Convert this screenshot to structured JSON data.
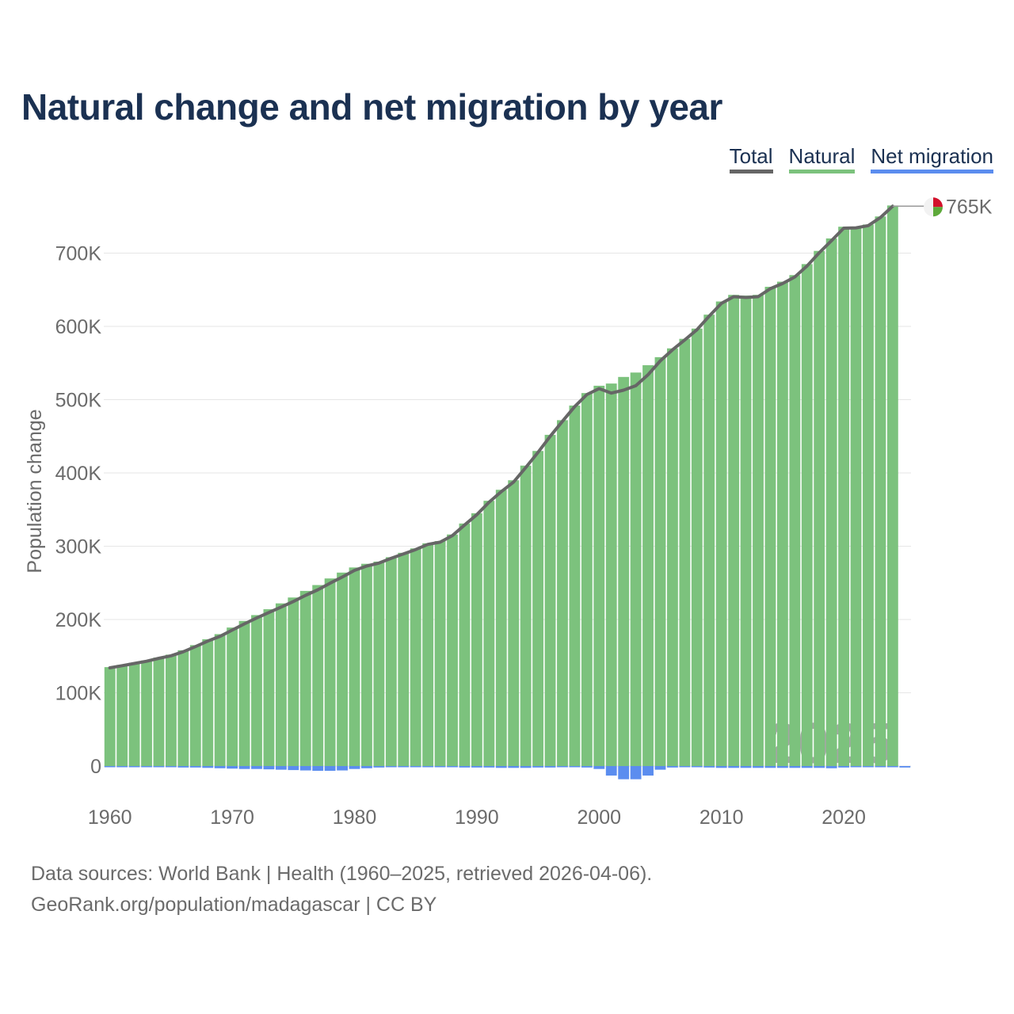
{
  "title": "Natural change and net migration by year",
  "legend": [
    {
      "label": "Total",
      "color": "#666666"
    },
    {
      "label": "Natural",
      "color": "#7cc27d"
    },
    {
      "label": "Net migration",
      "color": "#5b8def"
    }
  ],
  "footer": {
    "line1": "Data sources: World Bank | Health (1960–2025, retrieved 2026-04-06).",
    "line2": "GeoRank.org/population/madagascar | CC BY"
  },
  "chart_data": {
    "type": "bar",
    "title": "Natural change and net migration by year",
    "xlabel": "",
    "ylabel": "Population change",
    "ylim": [
      -50000,
      800000
    ],
    "yticks": [
      0,
      100000,
      200000,
      300000,
      400000,
      500000,
      600000,
      700000
    ],
    "ytick_labels": [
      "0",
      "100K",
      "200K",
      "300K",
      "400K",
      "500K",
      "600K",
      "700K"
    ],
    "xticks": [
      1960,
      1970,
      1980,
      1990,
      2000,
      2010,
      2020
    ],
    "xtick_labels": [
      "1960",
      "1970",
      "1980",
      "1990",
      "2000",
      "2010",
      "2020"
    ],
    "xlim": [
      1959.5,
      2025.5
    ],
    "year_watermark": "2025",
    "end_label": "765K",
    "categories": [
      1960,
      1961,
      1962,
      1963,
      1964,
      1965,
      1966,
      1967,
      1968,
      1969,
      1970,
      1971,
      1972,
      1973,
      1974,
      1975,
      1976,
      1977,
      1978,
      1979,
      1980,
      1981,
      1982,
      1983,
      1984,
      1985,
      1986,
      1987,
      1988,
      1989,
      1990,
      1991,
      1992,
      1993,
      1994,
      1995,
      1996,
      1997,
      1998,
      1999,
      2000,
      2001,
      2002,
      2003,
      2004,
      2005,
      2006,
      2007,
      2008,
      2009,
      2010,
      2011,
      2012,
      2013,
      2014,
      2015,
      2016,
      2017,
      2018,
      2019,
      2020,
      2021,
      2022,
      2023,
      2024,
      2025
    ],
    "series": [
      {
        "name": "Natural",
        "color": "#7cc27d",
        "values": [
          135000,
          138000,
          141000,
          144000,
          148000,
          152000,
          158000,
          165000,
          173000,
          180000,
          189000,
          198000,
          206000,
          214000,
          222000,
          230000,
          239000,
          247000,
          256000,
          264000,
          271000,
          276000,
          279000,
          285000,
          291000,
          297000,
          304000,
          307000,
          316000,
          331000,
          345000,
          362000,
          377000,
          390000,
          410000,
          430000,
          452000,
          472000,
          492000,
          509000,
          519000,
          522000,
          531000,
          537000,
          547000,
          558000,
          570000,
          583000,
          597000,
          616000,
          634000,
          643000,
          642000,
          643000,
          654000,
          661000,
          670000,
          685000,
          703000,
          720000,
          736000,
          736000,
          739000,
          750000,
          765000,
          0
        ]
      },
      {
        "name": "Net migration",
        "color": "#5b8def",
        "values": [
          -1000,
          -1000,
          -1000,
          -1000,
          -1000,
          -1500,
          -2000,
          -2000,
          -2500,
          -3000,
          -3500,
          -4000,
          -4000,
          -4500,
          -5000,
          -5500,
          -6000,
          -6500,
          -6500,
          -6000,
          -4000,
          -3000,
          -2000,
          -1500,
          -1500,
          -1500,
          -1500,
          -1500,
          -1500,
          -2000,
          -2000,
          -2000,
          -2500,
          -2500,
          -2500,
          -2000,
          -2000,
          -1500,
          -1500,
          -2000,
          -4000,
          -13000,
          -18000,
          -18000,
          -13000,
          -5000,
          -2000,
          -1500,
          -1500,
          -2000,
          -2500,
          -2500,
          -2500,
          -2500,
          -2500,
          -2500,
          -2500,
          -2500,
          -2500,
          -3000,
          -2000,
          -1500,
          -1500,
          -1500,
          -1000,
          -2000
        ]
      },
      {
        "name": "Total",
        "color": "#666666",
        "values": [
          134000,
          137000,
          140000,
          143000,
          147000,
          150500,
          156000,
          163000,
          170500,
          177000,
          185500,
          194000,
          202000,
          209500,
          217000,
          224500,
          233000,
          240500,
          249500,
          258000,
          267000,
          273000,
          277000,
          283500,
          289500,
          295500,
          302500,
          305500,
          314500,
          329000,
          343000,
          360000,
          374500,
          387500,
          407500,
          428000,
          450000,
          470500,
          490500,
          507000,
          515000,
          509000,
          513000,
          519000,
          534000,
          553000,
          568000,
          581500,
          595500,
          614000,
          631500,
          640500,
          639500,
          640500,
          651500,
          658500,
          667500,
          682500,
          700500,
          717000,
          734000,
          734500,
          737500,
          748500,
          764000,
          null
        ]
      }
    ]
  }
}
